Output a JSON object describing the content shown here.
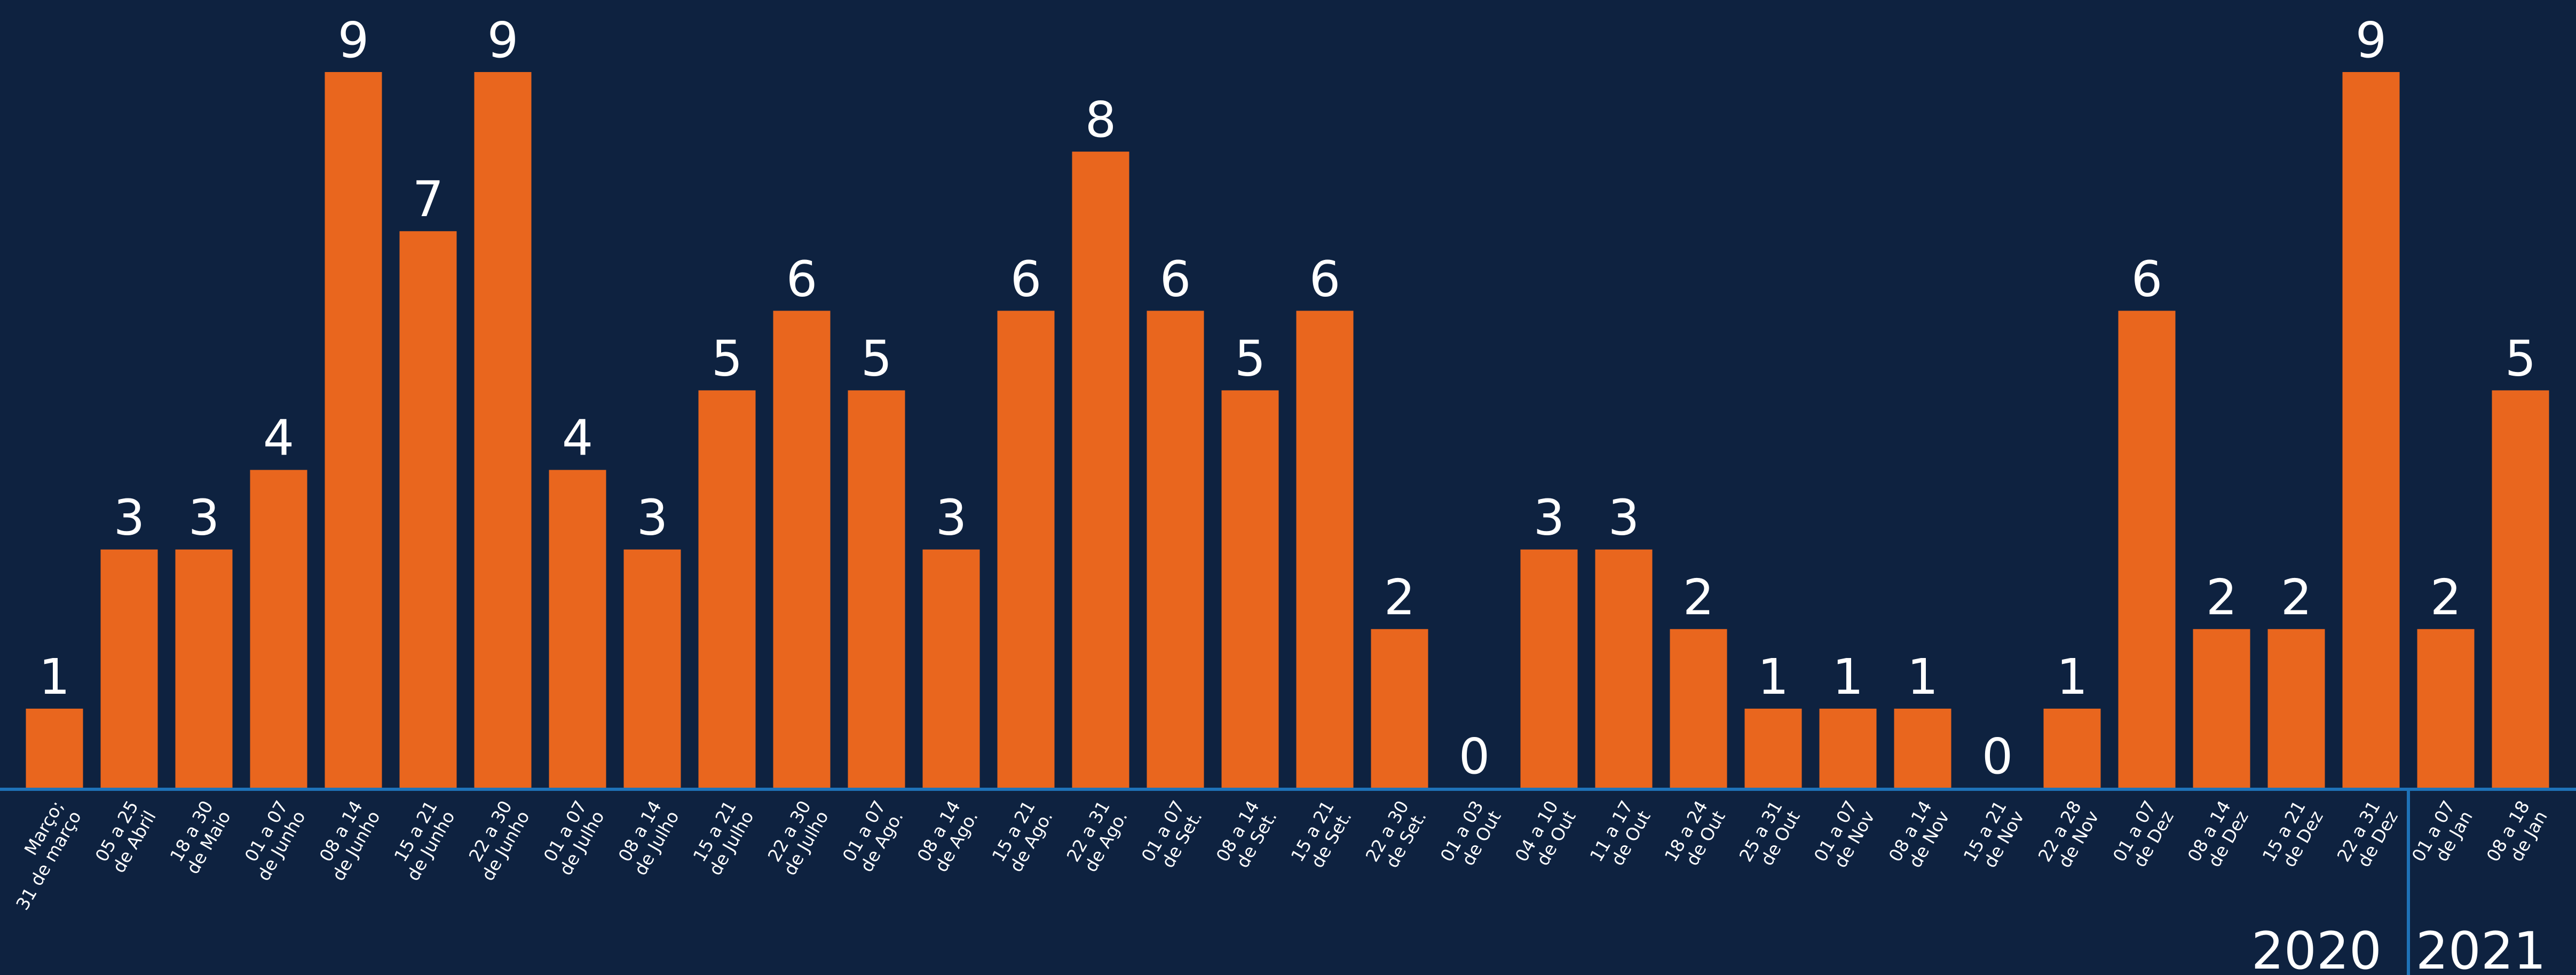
{
  "chart_data": {
    "type": "bar",
    "title": "",
    "xlabel": "",
    "ylabel": "",
    "ylim": [
      0,
      9
    ],
    "grid": false,
    "legend": "none",
    "colors": {
      "background": "#0e2240",
      "bar": "#e9661e",
      "axis": "#1e72b8",
      "text": "#ffffff"
    },
    "categories": [
      [
        "Março;",
        "31 de março"
      ],
      [
        "05 a 25",
        "de Abril"
      ],
      [
        "18 a 30",
        "de Maio"
      ],
      [
        "01 a 07",
        "de Junho"
      ],
      [
        "08 a 14",
        "de Junho"
      ],
      [
        "15 a 21",
        "de Junho"
      ],
      [
        "22 a 30",
        "de Junho"
      ],
      [
        "01 a 07",
        "de Julho"
      ],
      [
        "08 a 14",
        "de Julho"
      ],
      [
        "15 a 21",
        "de Julho"
      ],
      [
        "22 a 30",
        "de Julho"
      ],
      [
        "01 a 07",
        "de Ago."
      ],
      [
        "08 a 14",
        "de Ago."
      ],
      [
        "15 a 21",
        "de Ago."
      ],
      [
        "22 a 31",
        "de Ago."
      ],
      [
        "01 a 07",
        "de Set."
      ],
      [
        "08 a 14",
        "de Set."
      ],
      [
        "15 a 21",
        "de Set."
      ],
      [
        "22 a 30",
        "de Set."
      ],
      [
        "01 a 03",
        "de Out"
      ],
      [
        "04 a 10",
        "de Out"
      ],
      [
        "11 a 17",
        "de Out"
      ],
      [
        "18 a 24",
        "de Out"
      ],
      [
        "25 a 31",
        "de Out"
      ],
      [
        "01 a 07",
        "de Nov"
      ],
      [
        "08 a 14",
        "de Nov"
      ],
      [
        "15 a 21",
        "de Nov"
      ],
      [
        "22 a 28",
        "de Nov"
      ],
      [
        "01 a 07",
        "de Dez"
      ],
      [
        "08 a 14",
        "de Dez"
      ],
      [
        "15 a 21",
        "de Dez"
      ],
      [
        "22 a 31",
        "de Dez"
      ],
      [
        "01 a 07",
        "de Jan"
      ],
      [
        "08 a 18",
        "de Jan"
      ]
    ],
    "values": [
      1,
      3,
      3,
      4,
      9,
      7,
      9,
      4,
      3,
      5,
      6,
      5,
      3,
      6,
      8,
      6,
      5,
      6,
      2,
      0,
      3,
      3,
      2,
      1,
      1,
      1,
      0,
      1,
      6,
      2,
      2,
      9,
      2,
      5
    ],
    "year_groups": [
      {
        "label": "2020",
        "first_index": 0,
        "last_index": 31
      },
      {
        "label": "2021",
        "first_index": 32,
        "last_index": 33
      }
    ]
  }
}
